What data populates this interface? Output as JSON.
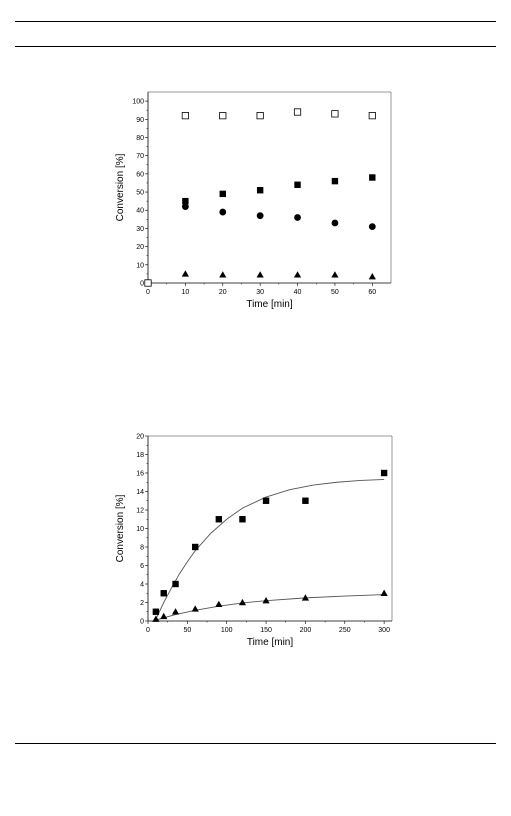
{
  "chart_data": [
    {
      "type": "scatter",
      "title": "",
      "xlabel": "Time [min]",
      "ylabel": "Conversion [%]",
      "xlim": [
        0,
        65
      ],
      "ylim": [
        0,
        105
      ],
      "xticks": [
        0,
        10,
        20,
        30,
        40,
        50,
        60
      ],
      "yticks": [
        0,
        10,
        20,
        30,
        40,
        50,
        60,
        70,
        80,
        90,
        100
      ],
      "grid": false,
      "legend": "none",
      "series": [
        {
          "marker": "open-square",
          "x": [
            0,
            10,
            20,
            30,
            40,
            50,
            60
          ],
          "y": [
            0,
            92,
            92,
            92,
            94,
            93,
            92
          ]
        },
        {
          "marker": "filled-square",
          "x": [
            10,
            20,
            30,
            40,
            50,
            60
          ],
          "y": [
            45,
            49,
            51,
            54,
            56,
            58
          ]
        },
        {
          "marker": "filled-circle",
          "x": [
            10,
            20,
            30,
            40,
            50,
            60
          ],
          "y": [
            42,
            39,
            37,
            36,
            33,
            31
          ]
        },
        {
          "marker": "filled-triangle",
          "x": [
            10,
            20,
            30,
            40,
            50,
            60
          ],
          "y": [
            5,
            4.5,
            4.5,
            4.5,
            4.5,
            3.5
          ]
        }
      ]
    },
    {
      "type": "scatter",
      "title": "",
      "xlabel": "Time [min]",
      "ylabel": "Conversion [%]",
      "xlim": [
        0,
        310
      ],
      "ylim": [
        0,
        20
      ],
      "xticks": [
        0,
        50,
        100,
        150,
        200,
        250,
        300
      ],
      "yticks": [
        0,
        2,
        4,
        6,
        8,
        10,
        12,
        14,
        16,
        18,
        20
      ],
      "grid": false,
      "legend": "none",
      "series": [
        {
          "marker": "filled-square",
          "x": [
            10,
            20,
            35,
            60,
            90,
            120,
            150,
            200,
            300
          ],
          "y": [
            1,
            3,
            4,
            8,
            11,
            11,
            13,
            13,
            16
          ],
          "fit": {
            "x": [
              10,
              20,
              30,
              40,
              50,
              60,
              80,
              100,
              120,
              150,
              180,
              210,
              240,
              270,
              300
            ],
            "y": [
              0.2,
              2.0,
              3.6,
              5.1,
              6.4,
              7.6,
              9.5,
              11.0,
              12.2,
              13.4,
              14.2,
              14.7,
              15.0,
              15.2,
              15.3
            ]
          }
        },
        {
          "marker": "filled-triangle",
          "x": [
            10,
            20,
            35,
            60,
            90,
            120,
            150,
            200,
            300
          ],
          "y": [
            0.2,
            0.5,
            1.0,
            1.3,
            1.8,
            2.0,
            2.2,
            2.5,
            3.0
          ],
          "fit": {
            "x": [
              10,
              20,
              35,
              60,
              90,
              120,
              150,
              200,
              250,
              300
            ],
            "y": [
              0.1,
              0.35,
              0.7,
              1.15,
              1.6,
              1.95,
              2.2,
              2.5,
              2.7,
              2.85
            ]
          }
        }
      ]
    }
  ]
}
